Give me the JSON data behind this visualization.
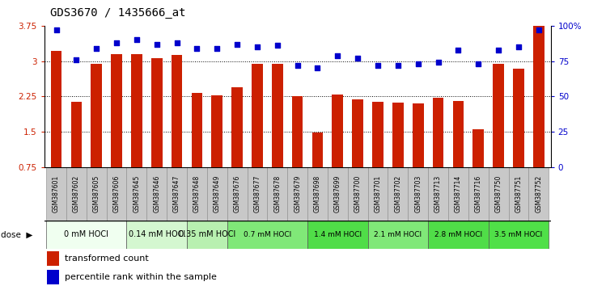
{
  "title": "GDS3670 / 1435666_at",
  "samples": [
    "GSM387601",
    "GSM387602",
    "GSM387605",
    "GSM387606",
    "GSM387645",
    "GSM387646",
    "GSM387647",
    "GSM387648",
    "GSM387649",
    "GSM387676",
    "GSM387677",
    "GSM387678",
    "GSM387679",
    "GSM387698",
    "GSM387699",
    "GSM387700",
    "GSM387701",
    "GSM387702",
    "GSM387703",
    "GSM387713",
    "GSM387714",
    "GSM387716",
    "GSM387750",
    "GSM387751",
    "GSM387752"
  ],
  "bar_values": [
    3.22,
    2.13,
    2.95,
    3.15,
    3.15,
    3.07,
    3.13,
    2.32,
    2.27,
    2.44,
    2.94,
    2.95,
    2.25,
    1.49,
    2.3,
    2.19,
    2.14,
    2.12,
    2.11,
    2.23,
    2.16,
    1.56,
    2.95,
    2.84,
    3.75
  ],
  "percentile_values": [
    97,
    76,
    84,
    88,
    90,
    87,
    88,
    84,
    84,
    87,
    85,
    86,
    72,
    70,
    79,
    77,
    72,
    72,
    73,
    74,
    83,
    73,
    83,
    85,
    97
  ],
  "dose_groups": [
    {
      "label": "0 mM HOCl",
      "start": 0,
      "end": 4,
      "color": "#f0fff0"
    },
    {
      "label": "0.14 mM HOCl",
      "start": 4,
      "end": 7,
      "color": "#d4f7d0"
    },
    {
      "label": "0.35 mM HOCl",
      "start": 7,
      "end": 9,
      "color": "#b8f0b0"
    },
    {
      "label": "0.7 mM HOCl",
      "start": 9,
      "end": 13,
      "color": "#80e878"
    },
    {
      "label": "1.4 mM HOCl",
      "start": 13,
      "end": 16,
      "color": "#50dd48"
    },
    {
      "label": "2.1 mM HOCl",
      "start": 16,
      "end": 19,
      "color": "#80e878"
    },
    {
      "label": "2.8 mM HOCl",
      "start": 19,
      "end": 22,
      "color": "#50dd48"
    },
    {
      "label": "3.5 mM HOCl",
      "start": 22,
      "end": 25,
      "color": "#50e048"
    }
  ],
  "ylim_left": [
    0.75,
    3.75
  ],
  "yticks_left": [
    0.75,
    1.5,
    2.25,
    3.0,
    3.75
  ],
  "ytick_labels_left": [
    "0.75",
    "1.5",
    "2.25",
    "3",
    "3.75"
  ],
  "yticks_right": [
    0,
    25,
    50,
    75,
    100
  ],
  "ytick_labels_right": [
    "0",
    "25",
    "50",
    "75",
    "100%"
  ],
  "hgrid_values": [
    1.5,
    2.25,
    3.0
  ],
  "bar_color": "#cc2000",
  "scatter_color": "#0000cc",
  "sample_box_color": "#c8c8c8",
  "sample_box_edge": "#888888"
}
